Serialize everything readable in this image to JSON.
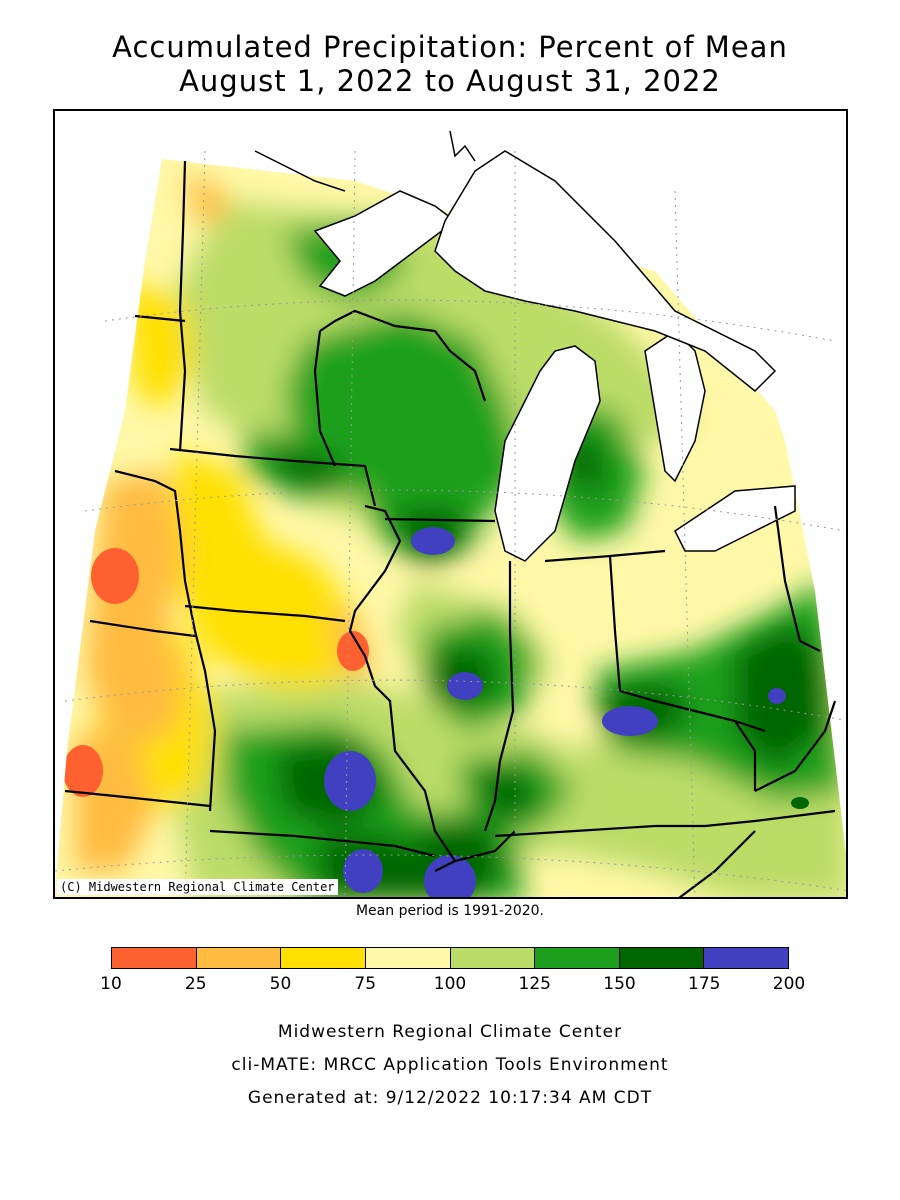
{
  "title_line1": "Accumulated Precipitation: Percent of Mean",
  "title_line2": "August 1, 2022 to August 31, 2022",
  "map_credit": "(C) Midwestern Regional Climate Center",
  "mean_period": "Mean period is 1991-2020.",
  "legend": {
    "bins": [
      {
        "from": 10,
        "to": 25,
        "color": "#ff6030"
      },
      {
        "from": 25,
        "to": 50,
        "color": "#ffbb40"
      },
      {
        "from": 50,
        "to": 75,
        "color": "#ffe000"
      },
      {
        "from": 75,
        "to": 100,
        "color": "#fff8a8"
      },
      {
        "from": 100,
        "to": 125,
        "color": "#bcdc68"
      },
      {
        "from": 125,
        "to": 150,
        "color": "#1ea01e"
      },
      {
        "from": 150,
        "to": 175,
        "color": "#006600"
      },
      {
        "from": 175,
        "to": 200,
        "color": "#4040c0"
      }
    ],
    "ticks": [
      "10",
      "25",
      "50",
      "75",
      "100",
      "125",
      "150",
      "175",
      "200"
    ]
  },
  "footer": {
    "line1": "Midwestern Regional Climate Center",
    "line2": "cli-MATE: MRCC Application Tools Environment",
    "line3": "Generated at: 9/12/2022 10:17:34 AM CDT"
  }
}
